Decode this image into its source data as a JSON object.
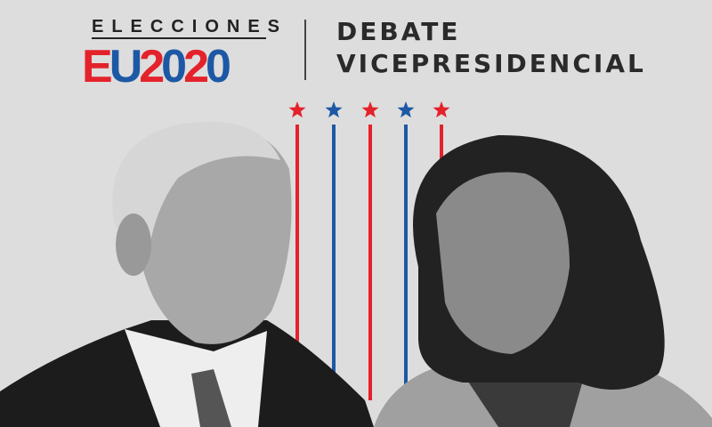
{
  "logo": {
    "top_text": "ELECCIONES",
    "main_parts": [
      {
        "text": "E",
        "color": "#e4222b"
      },
      {
        "text": "U",
        "color": "#1d58a5"
      },
      {
        "text": "2",
        "color": "#e4222b"
      },
      {
        "text": "0",
        "color": "#1d58a5"
      },
      {
        "text": "2",
        "color": "#e4222b"
      },
      {
        "text": "0",
        "color": "#1d58a5"
      }
    ]
  },
  "title": {
    "line1": "DEBATE",
    "line2": "VICEPRESIDENCIAL"
  },
  "colors": {
    "red": "#e4222b",
    "blue": "#1d58a5",
    "background": "#dddddd"
  },
  "stripes": [
    "red",
    "blue",
    "red",
    "blue",
    "red"
  ]
}
